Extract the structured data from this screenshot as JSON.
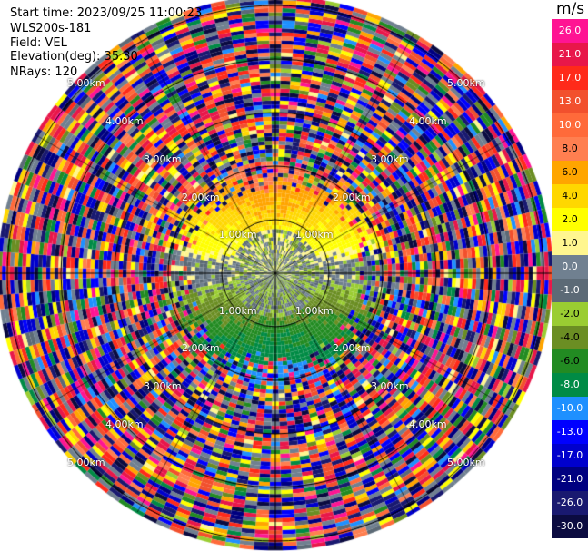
{
  "header": {
    "start_time": "Start time: 2023/09/25 11:00:23",
    "instrument": "WLS200s-181",
    "field": "Field: VEL",
    "elevation": "Elevation(deg): 35.30",
    "nrays": "NRays: 120"
  },
  "colorbar": {
    "unit": "m/s",
    "entries": [
      {
        "label": "26.0",
        "color": "#ff1493"
      },
      {
        "label": "21.0",
        "color": "#e8174a"
      },
      {
        "label": "17.0",
        "color": "#ff2a1a"
      },
      {
        "label": "13.0",
        "color": "#f2502d"
      },
      {
        "label": "10.0",
        "color": "#ff6a3a"
      },
      {
        "label": "8.0",
        "color": "#ff7f50"
      },
      {
        "label": "6.0",
        "color": "#ffa500"
      },
      {
        "label": "4.0",
        "color": "#ffd700"
      },
      {
        "label": "2.0",
        "color": "#ffff00"
      },
      {
        "label": "1.0",
        "color": "#fff68f"
      },
      {
        "label": "0.0",
        "color": "#708090"
      },
      {
        "label": "-1.0",
        "color": "#5c6a76"
      },
      {
        "label": "-2.0",
        "color": "#9acd32"
      },
      {
        "label": "-4.0",
        "color": "#6b8e23"
      },
      {
        "label": "-6.0",
        "color": "#228b22"
      },
      {
        "label": "-8.0",
        "color": "#008b45"
      },
      {
        "label": "-10.0",
        "color": "#1e90ff"
      },
      {
        "label": "-13.0",
        "color": "#0000ff"
      },
      {
        "label": "-17.0",
        "color": "#0000cd"
      },
      {
        "label": "-21.0",
        "color": "#000080"
      },
      {
        "label": "-26.0",
        "color": "#191970"
      },
      {
        "label": "-30.0",
        "color": "#0b0b40"
      }
    ]
  },
  "chart_data": {
    "type": "heatmap",
    "projection": "polar (PPI)",
    "field": "VEL",
    "nrays": 120,
    "range_rings_km": [
      1.0,
      2.0,
      3.0,
      4.0,
      5.0
    ],
    "ring_labels": [
      "1.00km",
      "2.00km",
      "3.00km",
      "4.00km",
      "5.00km"
    ],
    "radial_structure": [
      {
        "range_km": [
          0.0,
          0.8
        ],
        "pattern": "gray/olive near-zero velocities"
      },
      {
        "range_km": [
          0.8,
          2.2
        ],
        "north_half": "yellow to coral, +2 to +10 m/s",
        "south_half": "green to blue, -2 to -10 m/s"
      },
      {
        "range_km": [
          2.2,
          5.2
        ],
        "pattern": "noisy speckle across full color range (-30 to 26 m/s)"
      }
    ],
    "grid": true
  }
}
